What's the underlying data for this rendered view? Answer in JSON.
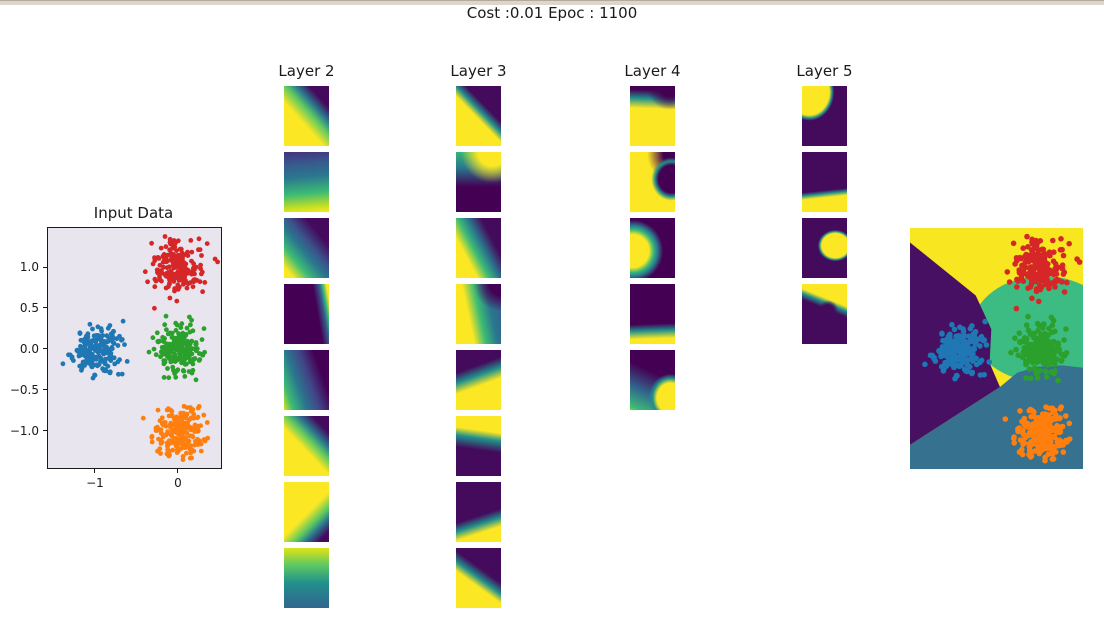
{
  "window": {
    "top_strip_color": "#ddd6cc",
    "top_strip_edge_color": "#b3aba0",
    "background": "#ffffff"
  },
  "header": {
    "title": "Cost :0.01 Epoc : 1100"
  },
  "chart_data": [
    {
      "id": "input",
      "type": "scatter",
      "title": "Input Data",
      "axes_bg": "#e9e5ee",
      "xlim": [
        -1.578,
        0.506
      ],
      "ylim": [
        -1.44,
        1.488
      ],
      "x_ticks": [
        -1,
        0
      ],
      "y_ticks": [
        1.0,
        0.5,
        0.0,
        -0.5,
        -1.0
      ],
      "grid": false,
      "clusters": [
        {
          "label": "cluster-blue",
          "color": "#1f77b4",
          "center": [
            -1.0,
            0.0
          ],
          "std": 0.14,
          "n": 200,
          "seed": 11
        },
        {
          "label": "cluster-green",
          "color": "#2ca02c",
          "center": [
            0.0,
            0.0
          ],
          "std": 0.14,
          "n": 200,
          "seed": 23
        },
        {
          "label": "cluster-red",
          "color": "#d62728",
          "center": [
            0.0,
            1.0
          ],
          "std": 0.15,
          "n": 200,
          "seed": 37
        },
        {
          "label": "cluster-orange",
          "color": "#ff7f0e",
          "center": [
            0.0,
            -1.0
          ],
          "std": 0.15,
          "n": 200,
          "seed": 53
        }
      ]
    },
    {
      "id": "hidden-layers",
      "type": "heatmap",
      "description": "Hidden-unit activation maps over the 2D input domain, viridis colormap (yellow=high, purple=low)",
      "columns": [
        {
          "label": "Layer 2",
          "tiles": [
            "linear-gradient(48deg, #fbe723 40%, #5ec962 56%, #2a788e 67%, #440a5c 80%)",
            "linear-gradient(175deg, #46327e 0%, #365c8d 22%, #2a788e 42%, #3dbc74 68%, #c8e020 90%, #fbe723 100%)",
            "linear-gradient(50deg, #fbe723 10%, #3dbc74 27%, #2a788e 44%, #3b528b 57%, #440a5c 76%)",
            "linear-gradient(80deg, #440154 70%, #365c8d 82%, #35b779 88%, #fbe723 95%)",
            "linear-gradient(70deg, #d8e219 0%, #3dbc74 14%, #2a788e 34%, #414487 55%, #440154 76%)",
            "linear-gradient(46deg, #fbe723 45%, #5ec962 59%, #2a788e 70%, #440a5c 84%)",
            "linear-gradient(135deg, #fbe723 52%, #5ec962 67%, #2a788e 77%, #440a5c 90%)",
            "linear-gradient(180deg, #d8e219 2%, #5ec962 28%, #21918c 58%, #2a788e 80%, #31688e 100%)"
          ]
        },
        {
          "label": "Layer 3",
          "tiles": [
            "linear-gradient(46deg, #fbe723 47%, #21918c 56%, #440a5c 66%)",
            "radial-gradient(circle at 80% 0%, #fbe723 20%, rgba(251,231,35,0) 44%), linear-gradient(180deg, #35b779 0%, #2a788e 26%, #440154 58%)",
            "linear-gradient(62deg, #fbe723 28%, #3dbc74 43%, #2a788e 56%, #440a5c 74%)",
            "radial-gradient(circle at 100% 0%, #440154 15%, rgba(68,1,84,0) 36%), linear-gradient(78deg, #fbe723 32%, #3dbc74 52%, #2a788e 72%, #365c8d 95%)",
            "linear-gradient(160deg, #440a5c 30%, #21918c 44%, #fbe723 58%)",
            "linear-gradient(188deg, #fbe723 26%, #21918c 38%, #440a5c 56%)",
            "linear-gradient(162deg, #440a5c 55%, #21918c 67%, #fbe723 79%)",
            "linear-gradient(36deg, #fbe723 40%, #21918c 50%, #440a5c 62%)"
          ]
        },
        {
          "label": "Layer 4",
          "tiles": [
            "radial-gradient(circle at 88% 2%, #440154 13%, rgba(68,1,84,0) 32%), linear-gradient(182deg, #440154 8%, #21918c 22%, #fbe723 38%)",
            "radial-gradient(ellipse 52% 42% at 92% 45%, #440154 55%, #21918c 70%, rgba(251,231,35,0) 86%), radial-gradient(circle at 100% 4%, #440154 16%, rgba(68,1,84,0) 38%), linear-gradient(180deg, #fbe723, #fbe723)",
            "radial-gradient(ellipse 72% 55% at 6% 55%, #fbe723 50%, #35b779 65%, #2a788e 77%, #440154 94%)",
            "linear-gradient(178deg, #440154 66%, #21918c 77%, #fbe723 90%)",
            "radial-gradient(ellipse 58% 48% at 90% 80%, #fbe723 52%, #21918c 68%, rgba(68,1,84,0) 84%), linear-gradient(205deg, #440154 40%, #31688e 70%, #3dbc74 95%, #7ad151 100%)"
          ]
        },
        {
          "label": "Layer 5",
          "tiles": [
            "radial-gradient(ellipse 64% 55% at 16% 10%, #fbe723 70%, #21918c 79%, #440a5c 87%)",
            "linear-gradient(174deg, #440a5c 63%, #21918c 68%, #fbe723 74%)",
            "radial-gradient(ellipse 40% 27% at 74% 46%, #fbe723 76%, #21918c 87%, #440a5c 97%)",
            "radial-gradient(circle at 58% 44%, #440a5c 13%, rgba(68,10,92,0) 24%), linear-gradient(202deg, #fbe723 29%, #21918c 35%, #440a5c 43%)"
          ]
        }
      ]
    },
    {
      "id": "output",
      "type": "scatter",
      "description": "Decision regions of the trained network with the four input clusters overlaid",
      "regions": [
        {
          "label": "region-yellow-top",
          "color": "#f8e621"
        },
        {
          "label": "region-green-center",
          "color": "#3cbb82",
          "ellipse": {
            "left": "36%",
            "top": "20%",
            "width": "82%",
            "height": "44%"
          }
        },
        {
          "label": "region-blue-bottom",
          "color": "#36718f",
          "clip": "polygon(0% 90%, 52% 66%, 62% 60%, 74% 57.5%, 88% 57%, 100% 58%, 100% 100%, 0% 100%)"
        },
        {
          "label": "region-purple-left",
          "color": "#471063",
          "clip": "polygon(0% 6%, 38% 28%, 47% 42%, 46% 56%, 52% 66%, 0% 90%)"
        }
      ]
    }
  ]
}
